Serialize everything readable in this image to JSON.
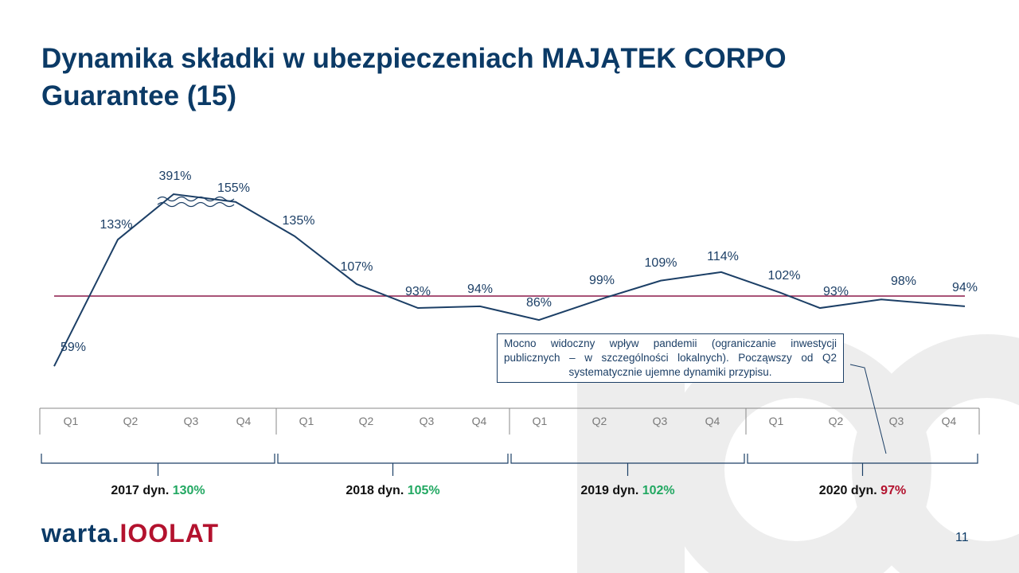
{
  "title": "Dynamika składki w ubezpieczeniach MAJĄTEK CORPO Guarantee (15)",
  "chart_data": {
    "type": "line",
    "categories": [
      "Q1",
      "Q2",
      "Q3",
      "Q4",
      "Q1",
      "Q2",
      "Q3",
      "Q4",
      "Q1",
      "Q2",
      "Q3",
      "Q4",
      "Q1",
      "Q2",
      "Q3",
      "Q4"
    ],
    "values": [
      59,
      133,
      391,
      155,
      135,
      107,
      93,
      94,
      86,
      99,
      109,
      114,
      102,
      93,
      98,
      94
    ],
    "data_labels": [
      "59%",
      "133%",
      "391%",
      "155%",
      "135%",
      "107%",
      "93%",
      "94%",
      "86%",
      "99%",
      "109%",
      "114%",
      "102%",
      "93%",
      "98%",
      "94%"
    ],
    "reference_line": 100,
    "axis_break": "between Q3 and Q4 2017",
    "series_color": "#1c3f66",
    "reference_color": "#8b1a4a",
    "years": [
      {
        "label": "2017 dyn.",
        "value": "130%",
        "status": "pos"
      },
      {
        "label": "2018 dyn.",
        "value": "105%",
        "status": "pos"
      },
      {
        "label": "2019 dyn.",
        "value": "102%",
        "status": "pos"
      },
      {
        "label": "2020 dyn.",
        "value": "97%",
        "status": "neg"
      }
    ]
  },
  "annotation": "Mocno widoczny wpływ pandemii (ograniczanie inwestycji publicznych – w szczególności lokalnych). Począwszy od Q2 systematycznie ujemne dynamiki przypisu.",
  "logo": {
    "part1": "warta.",
    "part2": "IOOLAT"
  },
  "page_number": "11",
  "colors": {
    "positive": "#22a862",
    "negative": "#b3122e",
    "title": "#0b3a66"
  }
}
